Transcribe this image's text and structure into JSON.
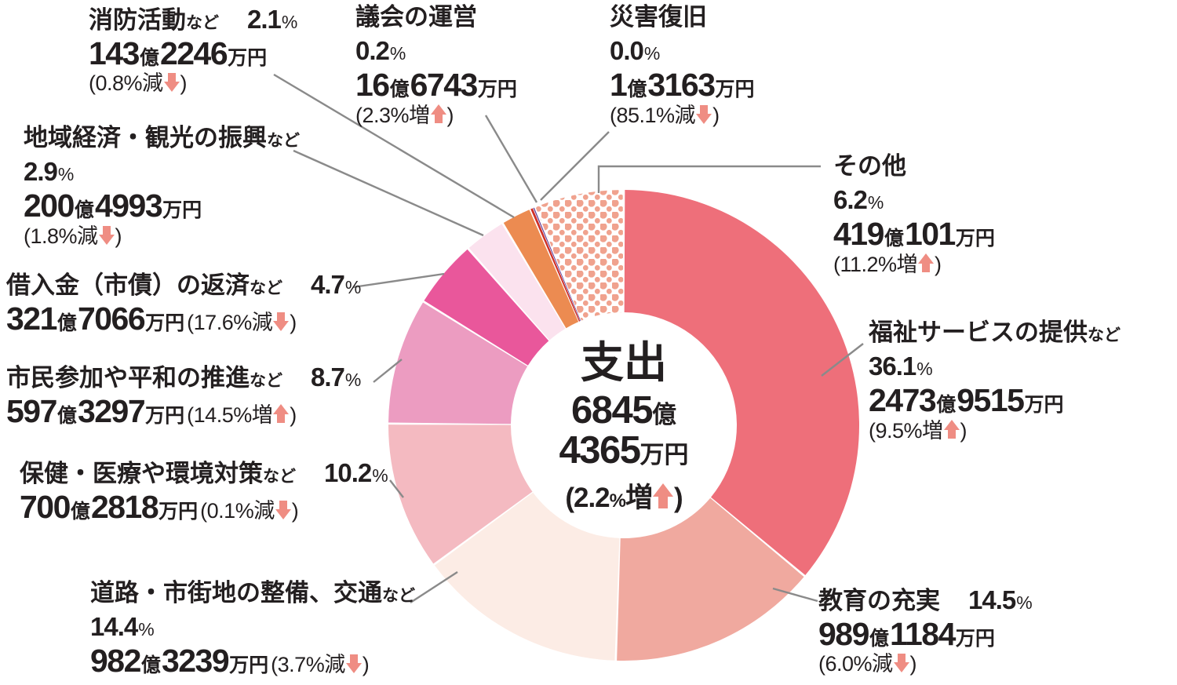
{
  "chart_data": {
    "type": "pie",
    "donut": true,
    "legend_position": "around",
    "center": {
      "title": "支出",
      "total_line1_num": "6845",
      "total_line1_unit": "億",
      "total_line2_num": "4365",
      "total_line2_unit": "万円",
      "change_pct": "2.2",
      "change_word": "増",
      "change_dir": "up"
    },
    "segments": [
      {
        "id": "welfare",
        "name": "福祉サービスの提供",
        "suffix": "など",
        "pct": "36.1",
        "value": 36.1,
        "amount": [
          [
            "2473",
            "億"
          ],
          [
            "9515",
            "万円"
          ]
        ],
        "change_pct": "9.5",
        "change_word": "増",
        "change_dir": "up",
        "color": "#ee6f7a"
      },
      {
        "id": "education",
        "name": "教育の充実",
        "suffix": "",
        "pct": "14.5",
        "value": 14.5,
        "amount": [
          [
            "989",
            "億"
          ],
          [
            "1184",
            "万円"
          ]
        ],
        "change_pct": "6.0",
        "change_word": "減",
        "change_dir": "down",
        "color": "#f0a99f"
      },
      {
        "id": "road",
        "name": "道路・市街地の整備、交通",
        "suffix": "など",
        "pct": "14.4",
        "value": 14.4,
        "amount": [
          [
            "982",
            "億"
          ],
          [
            "3239",
            "万円"
          ]
        ],
        "change_pct": "3.7",
        "change_word": "減",
        "change_dir": "down",
        "color": "#fcece5"
      },
      {
        "id": "health",
        "name": "保健・医療や環境対策",
        "suffix": "など",
        "pct": "10.2",
        "value": 10.2,
        "amount": [
          [
            "700",
            "億"
          ],
          [
            "2818",
            "万円"
          ]
        ],
        "change_pct": "0.1",
        "change_word": "減",
        "change_dir": "down",
        "color": "#f4bac1"
      },
      {
        "id": "citizen",
        "name": "市民参加や平和の推進",
        "suffix": "など",
        "pct": "8.7",
        "value": 8.7,
        "amount": [
          [
            "597",
            "億"
          ],
          [
            "3297",
            "万円"
          ]
        ],
        "change_pct": "14.5",
        "change_word": "増",
        "change_dir": "up",
        "color": "#ec9cc1"
      },
      {
        "id": "debt",
        "name": "借入金（市債）の返済",
        "suffix": "など",
        "pct": "4.7",
        "value": 4.7,
        "amount": [
          [
            "321",
            "億"
          ],
          [
            "7066",
            "万円"
          ]
        ],
        "change_pct": "17.6",
        "change_word": "減",
        "change_dir": "down",
        "color": "#e9579b"
      },
      {
        "id": "economy",
        "name": "地域経済・観光の振興",
        "suffix": "など",
        "pct": "2.9",
        "value": 2.9,
        "amount": [
          [
            "200",
            "億"
          ],
          [
            "4993",
            "万円"
          ]
        ],
        "change_pct": "1.8",
        "change_word": "減",
        "change_dir": "down",
        "color": "#fbe2ee"
      },
      {
        "id": "fire",
        "name": "消防活動",
        "suffix": "など",
        "pct": "2.1",
        "value": 2.1,
        "amount": [
          [
            "143",
            "億"
          ],
          [
            "2246",
            "万円"
          ]
        ],
        "change_pct": "0.8",
        "change_word": "減",
        "change_dir": "down",
        "color": "#ec8b51"
      },
      {
        "id": "council",
        "name": "議会の運営",
        "suffix": "",
        "pct": "0.2",
        "value": 0.2,
        "amount": [
          [
            "16",
            "億"
          ],
          [
            "6743",
            "万円"
          ]
        ],
        "change_pct": "2.3",
        "change_word": "増",
        "change_dir": "up",
        "color": "#cf3028"
      },
      {
        "id": "disaster",
        "name": "災害復旧",
        "suffix": "",
        "pct": "0.0",
        "value": 0.0,
        "amount": [
          [
            "1",
            "億"
          ],
          [
            "3163",
            "万円"
          ]
        ],
        "change_pct": "85.1",
        "change_word": "減",
        "change_dir": "down",
        "color": "#5c3b99"
      },
      {
        "id": "other",
        "name": "その他",
        "suffix": "",
        "pct": "6.2",
        "value": 6.2,
        "amount": [
          [
            "419",
            "億"
          ],
          [
            "101",
            "万円"
          ]
        ],
        "change_pct": "11.2",
        "change_word": "増",
        "change_dir": "up",
        "color": "#f0a28e",
        "pattern": "dots"
      }
    ],
    "colors": {
      "arrow": "#ef8d83",
      "leader_line": "#8a8a8a",
      "text": "#231f20",
      "dot_pattern": "#f0a28e",
      "background": "#ffffff"
    }
  }
}
